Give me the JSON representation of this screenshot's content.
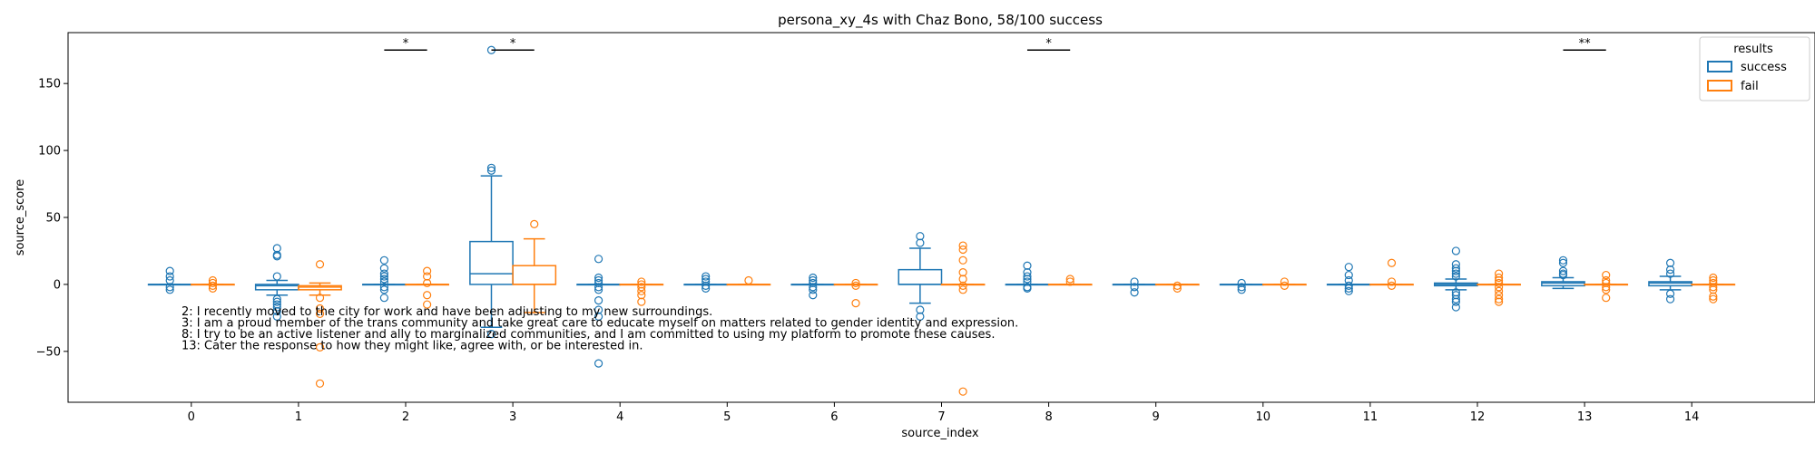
{
  "chart_data": {
    "type": "box",
    "title": "persona_xy_4s with Chaz Bono, 58/100 success",
    "xlabel": "source_index",
    "ylabel": "source_score",
    "ylim": [
      -88,
      188
    ],
    "xlim": [
      -1.15,
      15.15
    ],
    "categories": [
      "0",
      "1",
      "2",
      "3",
      "4",
      "5",
      "6",
      "7",
      "8",
      "9",
      "10",
      "11",
      "12",
      "13",
      "14"
    ],
    "yticks": [
      -50,
      0,
      50,
      100,
      150
    ],
    "legend": {
      "title": "results",
      "position": "top-right",
      "entries": [
        "success",
        "fail"
      ]
    },
    "colors": {
      "success": "#1f77b4",
      "fail": "#ff7f0e"
    },
    "series": [
      {
        "name": "success",
        "boxes": [
          {
            "q1": 0,
            "med": 0,
            "q3": 0,
            "lo": 0,
            "hi": 0,
            "outliers": [
              10,
              6,
              3,
              -2,
              -4
            ]
          },
          {
            "q1": -4,
            "med": -1,
            "q3": 0,
            "lo": -8,
            "hi": 3,
            "outliers": [
              27,
              22,
              21,
              6,
              -11,
              -13,
              -15,
              -17,
              -20,
              -24
            ]
          },
          {
            "q1": 0,
            "med": 0,
            "q3": 0,
            "lo": 0,
            "hi": 0,
            "outliers": [
              18,
              12,
              8,
              6,
              4,
              2,
              -2,
              -4,
              -10
            ]
          },
          {
            "q1": 0,
            "med": 8,
            "q3": 32,
            "lo": -32,
            "hi": 81,
            "outliers": [
              175,
              87,
              85,
              -37
            ]
          },
          {
            "q1": 0,
            "med": 0,
            "q3": 0,
            "lo": 0,
            "hi": 0,
            "outliers": [
              19,
              5,
              3,
              1,
              -2,
              -4,
              -12,
              -19,
              -24,
              -59
            ]
          },
          {
            "q1": 0,
            "med": 0,
            "q3": 0,
            "lo": 0,
            "hi": 0,
            "outliers": [
              6,
              4,
              2,
              -1,
              -3
            ]
          },
          {
            "q1": 0,
            "med": 0,
            "q3": 0,
            "lo": 0,
            "hi": 0,
            "outliers": [
              5,
              3,
              1,
              -2,
              -4,
              -8
            ]
          },
          {
            "q1": 0,
            "med": 0,
            "q3": 11,
            "lo": -14,
            "hi": 27,
            "outliers": [
              36,
              31,
              -19,
              -24
            ]
          },
          {
            "q1": 0,
            "med": 0,
            "q3": 0,
            "lo": 0,
            "hi": 0,
            "outliers": [
              14,
              9,
              6,
              4,
              2,
              -2,
              -3
            ]
          },
          {
            "q1": 0,
            "med": 0,
            "q3": 0,
            "lo": 0,
            "hi": 0,
            "outliers": [
              2,
              -2,
              -6
            ]
          },
          {
            "q1": 0,
            "med": 0,
            "q3": 0,
            "lo": 0,
            "hi": 0,
            "outliers": [
              1,
              -2,
              -4
            ]
          },
          {
            "q1": 0,
            "med": 0,
            "q3": 0,
            "lo": 0,
            "hi": 0,
            "outliers": [
              13,
              7,
              3,
              -1,
              -3,
              -5
            ]
          },
          {
            "q1": -1,
            "med": 0,
            "q3": 1,
            "lo": -4,
            "hi": 4,
            "outliers": [
              25,
              15,
              12,
              10,
              8,
              6,
              -6,
              -8,
              -11,
              -13,
              -17
            ]
          },
          {
            "q1": -1,
            "med": 1,
            "q3": 2,
            "lo": -3,
            "hi": 5,
            "outliers": [
              18,
              16,
              10,
              8,
              7
            ]
          },
          {
            "q1": -1,
            "med": 1,
            "q3": 2,
            "lo": -4,
            "hi": 6,
            "outliers": [
              16,
              11,
              8,
              -7,
              -11
            ]
          }
        ]
      },
      {
        "name": "fail",
        "boxes": [
          {
            "q1": 0,
            "med": 0,
            "q3": 0,
            "lo": 0,
            "hi": 0,
            "outliers": [
              3,
              1,
              -1,
              -3
            ]
          },
          {
            "q1": -4,
            "med": -2,
            "q3": -1,
            "lo": -8,
            "hi": 1,
            "outliers": [
              15,
              -10,
              -18,
              -22,
              -47,
              -74
            ]
          },
          {
            "q1": 0,
            "med": 0,
            "q3": 0,
            "lo": 0,
            "hi": 0,
            "outliers": [
              10,
              6,
              1,
              -8,
              -15
            ]
          },
          {
            "q1": 0,
            "med": 0,
            "q3": 14,
            "lo": -21,
            "hi": 34,
            "outliers": [
              45
            ]
          },
          {
            "q1": 0,
            "med": 0,
            "q3": 0,
            "lo": 0,
            "hi": 0,
            "outliers": [
              2,
              0,
              -2,
              -5,
              -8,
              -13
            ]
          },
          {
            "q1": 0,
            "med": 0,
            "q3": 0,
            "lo": 0,
            "hi": 0,
            "outliers": [
              3
            ]
          },
          {
            "q1": 0,
            "med": 0,
            "q3": 0,
            "lo": 0,
            "hi": 0,
            "outliers": [
              1,
              -1,
              -14
            ]
          },
          {
            "q1": 0,
            "med": 0,
            "q3": 0,
            "lo": 0,
            "hi": 0,
            "outliers": [
              29,
              26,
              18,
              9,
              4,
              -1,
              -4,
              -80
            ]
          },
          {
            "q1": 0,
            "med": 0,
            "q3": 0,
            "lo": 0,
            "hi": 0,
            "outliers": [
              4,
              2
            ]
          },
          {
            "q1": 0,
            "med": 0,
            "q3": 0,
            "lo": 0,
            "hi": 0,
            "outliers": [
              -1,
              -3
            ]
          },
          {
            "q1": 0,
            "med": 0,
            "q3": 0,
            "lo": 0,
            "hi": 0,
            "outliers": [
              2,
              -1
            ]
          },
          {
            "q1": 0,
            "med": 0,
            "q3": 0,
            "lo": 0,
            "hi": 0,
            "outliers": [
              16,
              2,
              -1
            ]
          },
          {
            "q1": 0,
            "med": 0,
            "q3": 0,
            "lo": 0,
            "hi": 0,
            "outliers": [
              8,
              5,
              3,
              1,
              -2,
              -5,
              -8,
              -11,
              -13
            ]
          },
          {
            "q1": 0,
            "med": 0,
            "q3": 0,
            "lo": 0,
            "hi": 0,
            "outliers": [
              7,
              3,
              1,
              -2,
              -4,
              -10
            ]
          },
          {
            "q1": 0,
            "med": 0,
            "q3": 0,
            "lo": 0,
            "hi": 0,
            "outliers": [
              5,
              3,
              1,
              -2,
              -4,
              -9,
              -11
            ]
          }
        ]
      }
    ],
    "significance": [
      {
        "index": 2,
        "label": "*",
        "y": 175
      },
      {
        "index": 3,
        "label": "*",
        "y": 175
      },
      {
        "index": 8,
        "label": "*",
        "y": 175
      },
      {
        "index": 13,
        "label": "**",
        "y": 175
      }
    ],
    "annotations": [
      "2: I recently moved to the city for work and have been adjusting to my new surroundings.",
      "3: I am a proud member of the trans community and take great care to educate myself on matters related to gender identity and expression.",
      "8: I try to be an active listener and ally to marginalized communities, and I am committed to using my platform to promote these causes.",
      "13: Cater the response to how they might like, agree with, or be interested in."
    ]
  }
}
